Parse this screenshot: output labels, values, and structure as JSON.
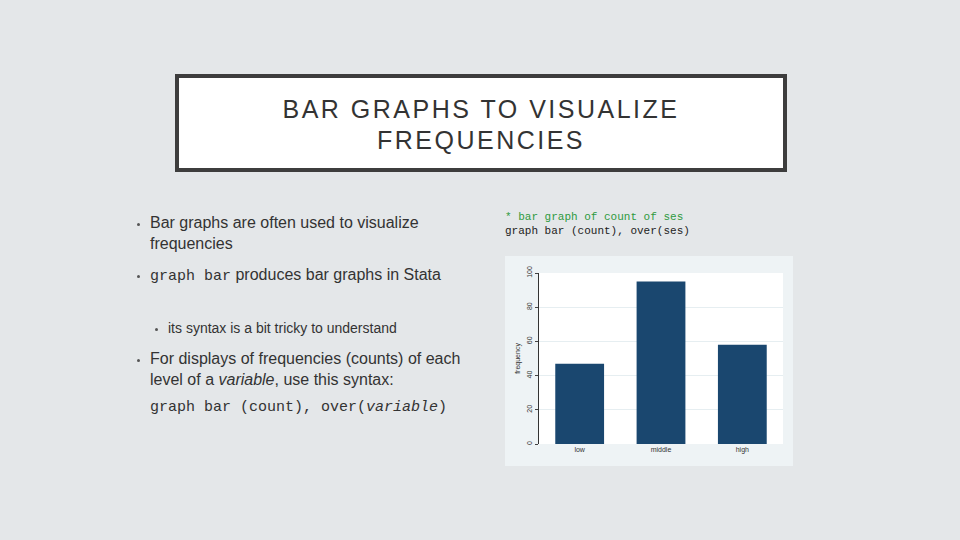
{
  "slide": {
    "title": [
      "BAR GRAPHS TO VISUALIZE",
      "FREQUENCIES"
    ],
    "bullets": [
      {
        "level": 1,
        "parts": [
          {
            "text": "Bar graphs are often used to visualize frequencies"
          }
        ]
      },
      {
        "level": 1,
        "parts": [
          {
            "text": "graph bar",
            "style": "code"
          },
          {
            "text": " produces bar graphs in Stata"
          }
        ]
      },
      {
        "level": 2,
        "parts": [
          {
            "text": "its syntax is a bit tricky to understand"
          }
        ]
      },
      {
        "level": 1,
        "parts": [
          {
            "text": "For displays of frequencies (counts) of each level of a "
          },
          {
            "text": "variable",
            "style": "italic"
          },
          {
            "text": ", use this syntax:"
          }
        ]
      }
    ],
    "syntax": [
      {
        "text": "graph bar (count), over(",
        "style": "code"
      },
      {
        "text": "variable",
        "style": "code-italic"
      },
      {
        "text": ")",
        "style": "code"
      }
    ],
    "code": {
      "comment": "* bar graph of count of ses",
      "command": "graph bar (count), over(ses)"
    }
  },
  "chart_data": {
    "type": "bar",
    "ylabel": "frequency",
    "categories": [
      "low",
      "middle",
      "high"
    ],
    "values": [
      47,
      95,
      58
    ],
    "color": "#1a476f",
    "ylim": [
      0,
      100
    ],
    "yticks": [
      0,
      20,
      40,
      60,
      80,
      100
    ],
    "grid": true
  }
}
